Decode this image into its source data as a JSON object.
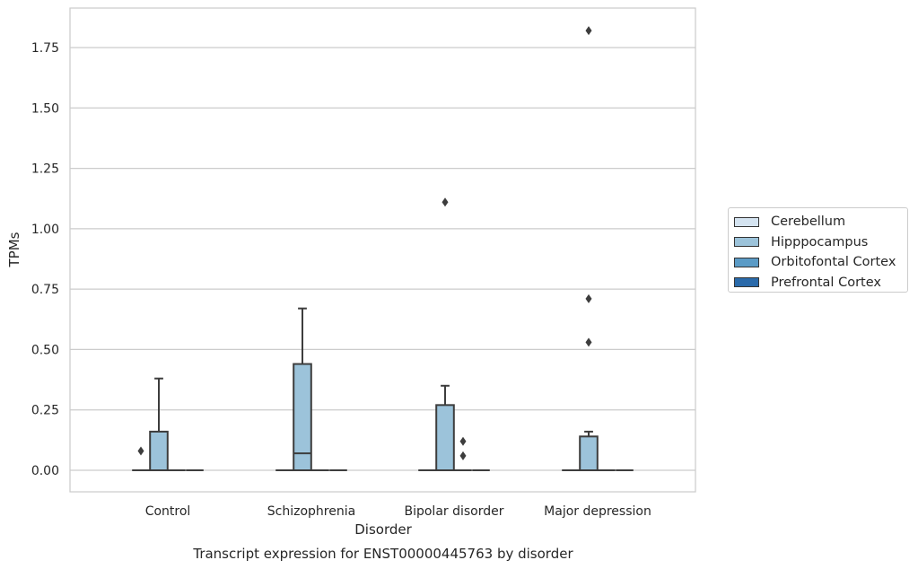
{
  "chart_data": {
    "type": "box",
    "title": "Transcript expression for ENST00000445763 by disorder",
    "xlabel": "Disorder",
    "ylabel": "TPMs",
    "ylim": [
      -0.09,
      1.92
    ],
    "yticks": [
      "0.00",
      "0.25",
      "0.50",
      "0.75",
      "1.00",
      "1.25",
      "1.50",
      "1.75"
    ],
    "grid": true,
    "legend_position": "right",
    "categories": [
      "Control",
      "Schizophrenia",
      "Bipolar disorder",
      "Major depression"
    ],
    "series": [
      {
        "name": "Cerebellum",
        "color": "#d4e3f0",
        "boxes": [
          {
            "q1": 0,
            "median": 0,
            "q3": 0,
            "whislo": 0,
            "whishi": 0,
            "fliers": []
          },
          {
            "q1": 0,
            "median": 0,
            "q3": 0,
            "whislo": 0,
            "whishi": 0,
            "fliers": []
          },
          {
            "q1": 0,
            "median": 0,
            "q3": 0,
            "whislo": 0,
            "whishi": 0,
            "fliers": []
          },
          {
            "q1": 0,
            "median": 0,
            "q3": 0,
            "whislo": 0,
            "whishi": 0,
            "fliers": []
          }
        ]
      },
      {
        "name": "Hipppocampus",
        "color": "#9cc3da",
        "boxes": [
          {
            "q1": 0,
            "median": 0,
            "q3": 0.16,
            "whislo": 0,
            "whishi": 0.38,
            "fliers": []
          },
          {
            "q1": 0,
            "median": 0.07,
            "q3": 0.44,
            "whislo": 0,
            "whishi": 0.67,
            "fliers": []
          },
          {
            "q1": 0,
            "median": 0,
            "q3": 0.27,
            "whislo": 0,
            "whishi": 0.35,
            "fliers": [
              1.11
            ]
          },
          {
            "q1": 0,
            "median": 0,
            "q3": 0.14,
            "whislo": 0,
            "whishi": 0.16,
            "fliers": [
              1.82,
              0.71,
              0.53
            ]
          }
        ]
      },
      {
        "name": "Orbitofontal Cortex",
        "color": "#5b9bc6",
        "boxes": [
          {
            "q1": 0,
            "median": 0,
            "q3": 0,
            "whislo": 0,
            "whishi": 0,
            "fliers": []
          },
          {
            "q1": 0,
            "median": 0,
            "q3": 0,
            "whislo": 0,
            "whishi": 0,
            "fliers": []
          },
          {
            "q1": 0,
            "median": 0,
            "q3": 0,
            "whislo": 0,
            "whishi": 0,
            "fliers": [
              0.12,
              0.06
            ]
          },
          {
            "q1": 0,
            "median": 0,
            "q3": 0,
            "whislo": 0,
            "whishi": 0,
            "fliers": []
          }
        ]
      },
      {
        "name": "Prefrontal Cortex",
        "color": "#2a6aaa",
        "boxes": [
          {
            "q1": 0,
            "median": 0,
            "q3": 0,
            "whislo": 0,
            "whishi": 0,
            "fliers": []
          },
          {
            "q1": 0,
            "median": 0,
            "q3": 0,
            "whislo": 0,
            "whishi": 0,
            "fliers": []
          },
          {
            "q1": 0,
            "median": 0,
            "q3": 0,
            "whislo": 0,
            "whishi": 0,
            "fliers": []
          },
          {
            "q1": 0,
            "median": 0,
            "q3": 0,
            "whislo": 0,
            "whishi": 0,
            "fliers": []
          }
        ]
      }
    ]
  },
  "extra_fliers": [
    {
      "category_index": 0,
      "series_index": 0,
      "value": 0.08
    }
  ]
}
